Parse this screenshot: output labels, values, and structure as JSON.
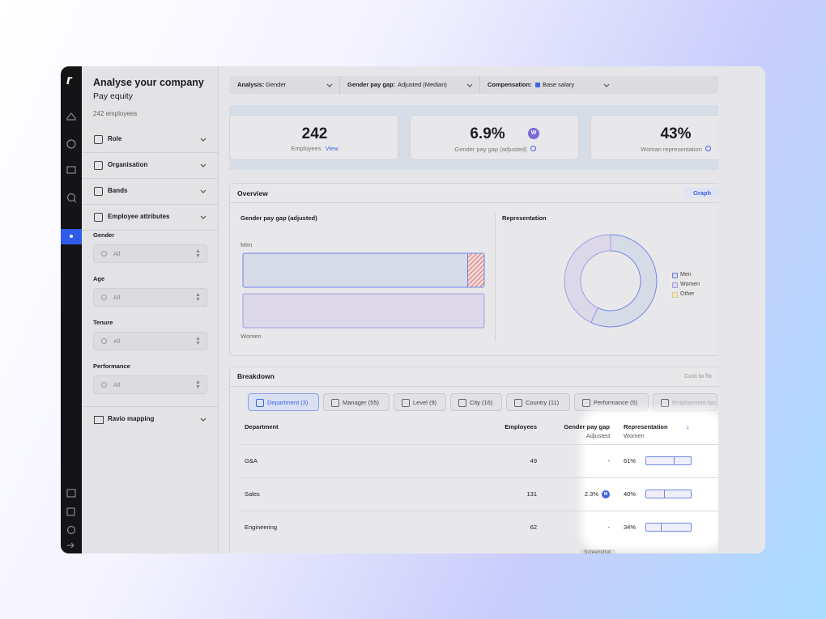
{
  "sidebar": {
    "title": "Analyse your company",
    "subtitle": "Pay equity",
    "count": "242 employees",
    "sections": [
      "Role",
      "Organisation",
      "Bands",
      "Employee attributes"
    ],
    "filters": [
      {
        "label": "Gender",
        "value": "All"
      },
      {
        "label": "Age",
        "value": "All"
      },
      {
        "label": "Tenure",
        "value": "All"
      },
      {
        "label": "Performance",
        "value": "All"
      }
    ],
    "footer": "Ravio mapping"
  },
  "toolbar": [
    {
      "label": "Analysis:",
      "value": "Gender"
    },
    {
      "label": "Gender pay gap:",
      "value": "Adjusted (Median)"
    },
    {
      "label": "Compensation:",
      "value": "Base salary"
    }
  ],
  "kpis": [
    {
      "value": "242",
      "caption": "Employees",
      "link": "View"
    },
    {
      "value": {
        "value": 6.9,
        "label": "6.9%"
      },
      "badge": "W",
      "caption": "Gender pay gap (adjusted)"
    },
    {
      "value": {
        "value": 43,
        "label": "43%"
      },
      "caption": "Woman representation"
    }
  ],
  "overview": {
    "title": "Overview",
    "toggle": "Graph",
    "gap_title": "Gender pay gap (adjusted)",
    "men": "Men",
    "women": "Women",
    "rep_title": "Representation",
    "legend": [
      "Men",
      "Women",
      "Other"
    ]
  },
  "breakdown": {
    "title": "Breakdown",
    "action": "Cust to fix",
    "tabs": [
      "Department (3)",
      "Manager (55)",
      "Level (9)",
      "City (16)",
      "Country (11)",
      "Performance (5)",
      "Employment typ"
    ],
    "columns": {
      "department": "Department",
      "employees": "Employees",
      "gap": "Gender pay gap",
      "gap_sub": "Adjusted",
      "rep": "Representation",
      "rep_sub": "Women"
    },
    "rows": [
      {
        "name": "G&A",
        "employees": "49",
        "gap": "-",
        "rep": {
          "value": 61,
          "label": "61%"
        }
      },
      {
        "name": "Sales",
        "employees": "131",
        "gap": "2.3%",
        "badge": "M",
        "rep": {
          "value": 40,
          "label": "40%"
        }
      },
      {
        "name": "Engineering",
        "employees": "62",
        "gap": "-",
        "rep": {
          "value": 34,
          "label": "34%"
        }
      }
    ]
  },
  "tooltip": "Screenshot"
}
